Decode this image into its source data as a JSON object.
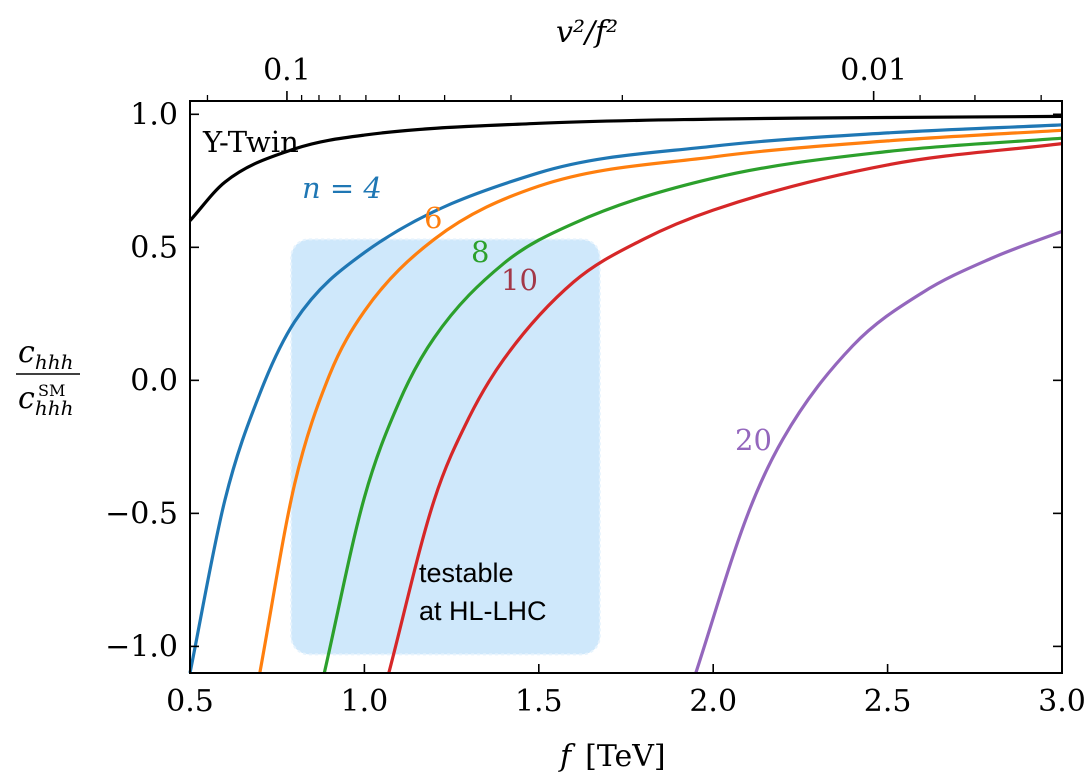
{
  "chart_data": {
    "type": "line",
    "xlabel_main": "f",
    "xlabel_unit": "[TeV]",
    "ylabel_num": "c",
    "ylabel_num_sub": "hhh",
    "ylabel_den": "c",
    "ylabel_den_sub": "hhh",
    "ylabel_den_sup": "SM",
    "top_axis_label": "v²/f²",
    "xlim": [
      0.5,
      3.0
    ],
    "ylim": [
      -1.1,
      1.05
    ],
    "x_ticks": [
      "0.5",
      "1.0",
      "1.5",
      "2.0",
      "2.5",
      "3.0"
    ],
    "y_ticks": [
      "−1.0",
      "−0.5",
      "0.0",
      "0.5",
      "1.0"
    ],
    "top_ticks": [
      "0.1",
      "0.01"
    ],
    "series": [
      {
        "name": "Y-Twin",
        "color": "#000000",
        "x": [
          0.5,
          0.6,
          0.8,
          1.0,
          1.5,
          2.0,
          2.5,
          3.0
        ],
        "y": [
          0.6,
          0.745,
          0.87,
          0.922,
          0.966,
          0.982,
          0.988,
          0.992
        ]
      },
      {
        "name": "n = 4",
        "color": "#1f77b4",
        "x": [
          0.5,
          0.6,
          0.7,
          0.8,
          1.0,
          1.5,
          2.0,
          2.5,
          3.0
        ],
        "y": [
          -1.1,
          -0.45,
          -0.05,
          0.22,
          0.48,
          0.78,
          0.88,
          0.93,
          0.96
        ]
      },
      {
        "name": "6",
        "color": "#ff7f0e",
        "x": [
          0.7,
          0.8,
          0.9,
          1.0,
          1.2,
          1.5,
          2.0,
          2.5,
          3.0
        ],
        "y": [
          -1.1,
          -0.39,
          0.02,
          0.26,
          0.53,
          0.73,
          0.84,
          0.9,
          0.94
        ]
      },
      {
        "name": "8",
        "color": "#2ca02c",
        "x": [
          0.885,
          1.0,
          1.1,
          1.2,
          1.4,
          1.6,
          2.0,
          2.5,
          3.0
        ],
        "y": [
          -1.1,
          -0.44,
          -0.08,
          0.16,
          0.44,
          0.59,
          0.76,
          0.86,
          0.91
        ]
      },
      {
        "name": "10",
        "color": "#d62728",
        "x": [
          1.07,
          1.2,
          1.3,
          1.4,
          1.6,
          1.8,
          2.0,
          2.5,
          3.0
        ],
        "y": [
          -1.1,
          -0.45,
          -0.14,
          0.08,
          0.37,
          0.53,
          0.64,
          0.81,
          0.89
        ]
      },
      {
        "name": "20",
        "color": "#9467bd",
        "x": [
          1.95,
          2.1,
          2.2,
          2.4,
          2.6,
          2.8,
          3.0
        ],
        "y": [
          -1.1,
          -0.5,
          -0.22,
          0.13,
          0.33,
          0.46,
          0.56
        ]
      }
    ],
    "label_colors": {
      "Y-Twin": "#000000",
      "n = 4": "#1f77b4",
      "6": "#ff7f0e",
      "8": "#2ca02c",
      "10": "#a33848",
      "20": "#9467bd"
    },
    "region": {
      "x": [
        0.79,
        1.675
      ],
      "y": [
        -1.03,
        0.53
      ],
      "color": "#cfe8fb",
      "label_line1": "testable",
      "label_line2": "at HL-LHC"
    },
    "grid": false,
    "legend": "none"
  }
}
